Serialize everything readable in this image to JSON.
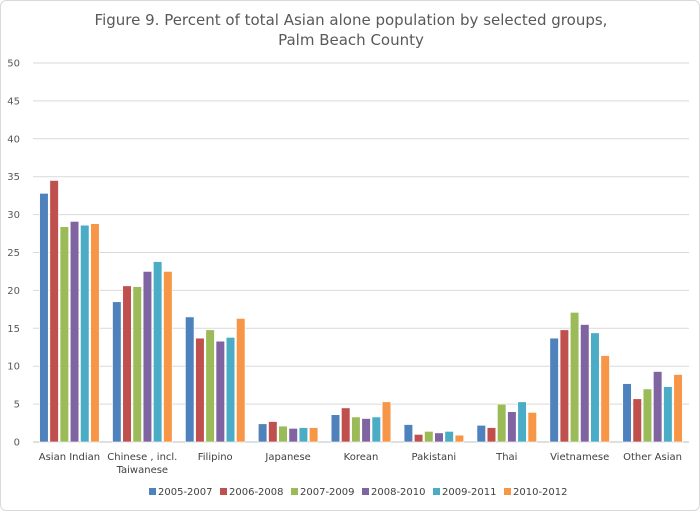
{
  "chart_data": {
    "type": "bar",
    "title": [
      "Figure 9. Percent of total Asian alone population by selected groups,",
      "Palm Beach County"
    ],
    "xlabel": "",
    "ylabel": "",
    "ylim": [
      0,
      50
    ],
    "yticks": [
      0,
      5,
      10,
      15,
      20,
      25,
      30,
      35,
      40,
      45,
      50
    ],
    "grid": true,
    "legend_position": "bottom",
    "categories": [
      [
        "Asian Indian"
      ],
      [
        "Chinese , incl.",
        "Taiwanese"
      ],
      [
        "Filipino"
      ],
      [
        "Japanese"
      ],
      [
        "Korean"
      ],
      [
        "Pakistani"
      ],
      [
        "Thai"
      ],
      [
        "Vietnamese"
      ],
      [
        "Other Asian"
      ]
    ],
    "series": [
      {
        "name": "2005-2007",
        "color": "#4f81bd",
        "values": [
          32.8,
          18.5,
          16.5,
          2.4,
          3.6,
          2.3,
          2.2,
          13.7,
          7.7
        ]
      },
      {
        "name": "2006-2008",
        "color": "#c0504d",
        "values": [
          34.5,
          20.6,
          13.7,
          2.7,
          4.5,
          1.0,
          1.9,
          14.8,
          5.7
        ]
      },
      {
        "name": "2007-2009",
        "color": "#9bbb59",
        "values": [
          28.4,
          20.5,
          14.8,
          2.1,
          3.3,
          1.4,
          5.0,
          17.1,
          7.0
        ]
      },
      {
        "name": "2008-2010",
        "color": "#8064a2",
        "values": [
          29.1,
          22.5,
          13.3,
          1.8,
          3.1,
          1.2,
          4.0,
          15.5,
          9.3
        ]
      },
      {
        "name": "2009-2011",
        "color": "#4bacc6",
        "values": [
          28.6,
          23.8,
          13.8,
          1.9,
          3.3,
          1.4,
          5.3,
          14.4,
          7.3
        ]
      },
      {
        "name": "2010-2012",
        "color": "#f79646",
        "values": [
          28.8,
          22.5,
          16.3,
          1.9,
          5.3,
          0.9,
          3.9,
          11.4,
          8.9
        ]
      }
    ]
  }
}
